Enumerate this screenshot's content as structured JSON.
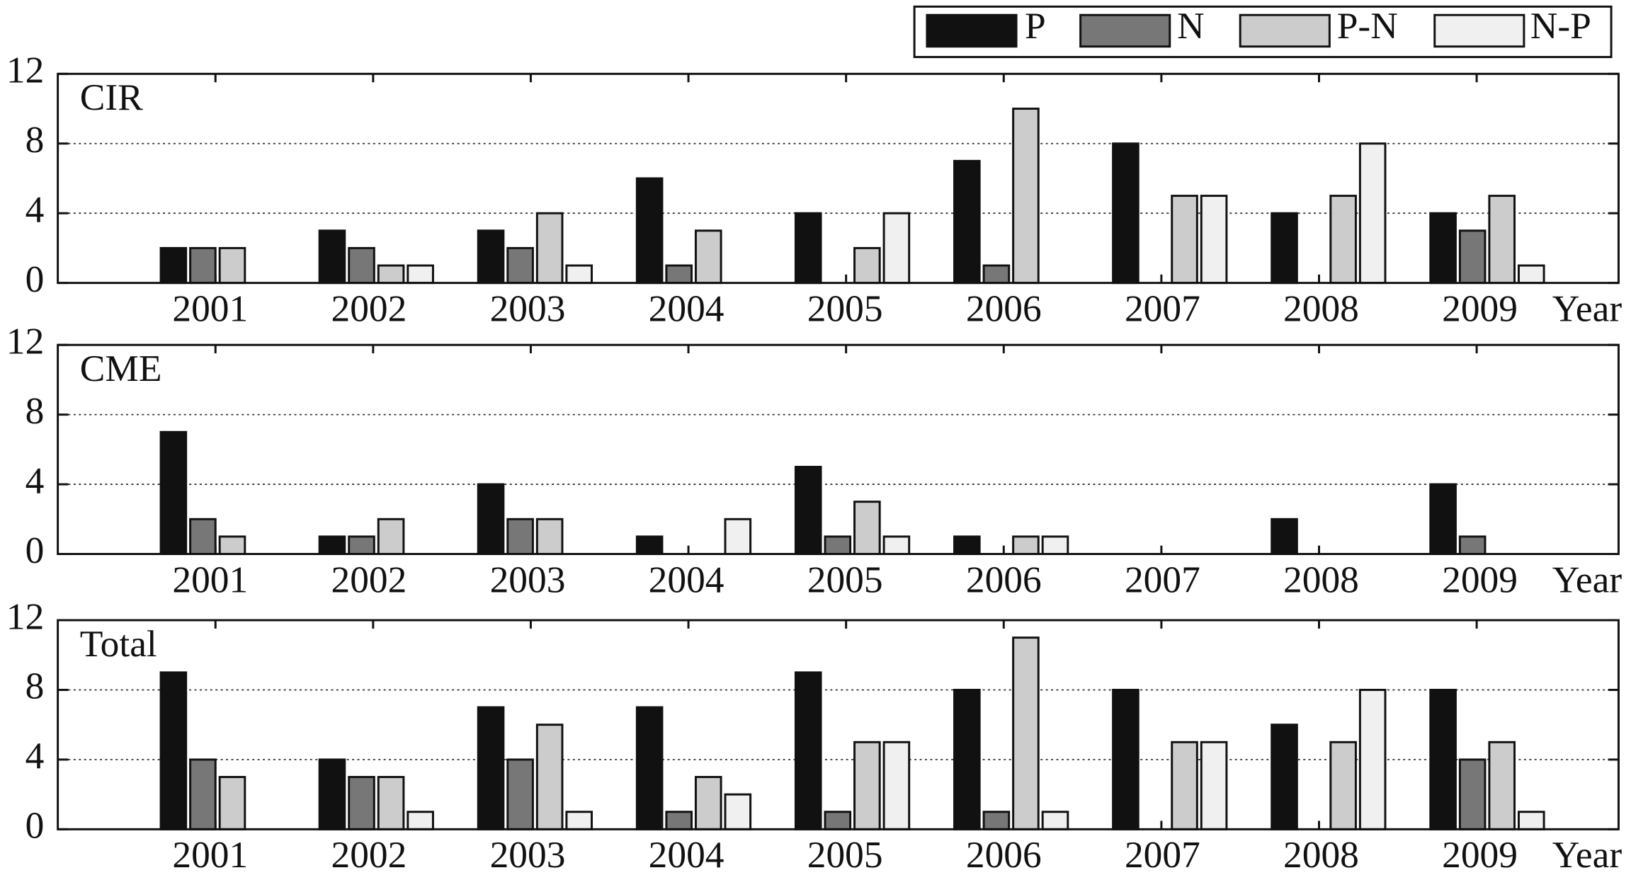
{
  "chart_data": [
    {
      "type": "bar",
      "title": "CIR",
      "x_label": "Year",
      "categories": [
        "2001",
        "2002",
        "2003",
        "2004",
        "2005",
        "2006",
        "2007",
        "2008",
        "2009"
      ],
      "series": [
        {
          "name": "P",
          "color": "#111111",
          "values": [
            2,
            3,
            3,
            6,
            4,
            7,
            8,
            4,
            4
          ]
        },
        {
          "name": "N",
          "color": "#777777",
          "values": [
            2,
            2,
            2,
            1,
            0,
            1,
            0,
            0,
            3
          ]
        },
        {
          "name": "P-N",
          "color": "#cccccc",
          "values": [
            2,
            1,
            4,
            3,
            2,
            10,
            5,
            5,
            5
          ]
        },
        {
          "name": "N-P",
          "color": "#f0f0f0",
          "values": [
            0,
            1,
            1,
            0,
            4,
            0,
            5,
            8,
            1
          ]
        }
      ],
      "ylim": [
        0,
        12
      ],
      "yticks": [
        0,
        4,
        8,
        12
      ],
      "grid": true
    },
    {
      "type": "bar",
      "title": "CME",
      "x_label": "Year",
      "categories": [
        "2001",
        "2002",
        "2003",
        "2004",
        "2005",
        "2006",
        "2007",
        "2008",
        "2009"
      ],
      "series": [
        {
          "name": "P",
          "color": "#111111",
          "values": [
            7,
            1,
            4,
            1,
            5,
            1,
            0,
            2,
            4
          ]
        },
        {
          "name": "N",
          "color": "#777777",
          "values": [
            2,
            1,
            2,
            0,
            1,
            0,
            0,
            0,
            1
          ]
        },
        {
          "name": "P-N",
          "color": "#cccccc",
          "values": [
            1,
            2,
            2,
            0,
            3,
            1,
            0,
            0,
            0
          ]
        },
        {
          "name": "N-P",
          "color": "#f0f0f0",
          "values": [
            0,
            0,
            0,
            2,
            1,
            1,
            0,
            0,
            0
          ]
        }
      ],
      "ylim": [
        0,
        12
      ],
      "yticks": [
        0,
        4,
        8,
        12
      ],
      "grid": true
    },
    {
      "type": "bar",
      "title": "Total",
      "x_label": "Year",
      "categories": [
        "2001",
        "2002",
        "2003",
        "2004",
        "2005",
        "2006",
        "2007",
        "2008",
        "2009"
      ],
      "series": [
        {
          "name": "P",
          "color": "#111111",
          "values": [
            9,
            4,
            7,
            7,
            9,
            8,
            8,
            6,
            8
          ]
        },
        {
          "name": "N",
          "color": "#777777",
          "values": [
            4,
            3,
            4,
            1,
            1,
            1,
            0,
            0,
            4
          ]
        },
        {
          "name": "P-N",
          "color": "#cccccc",
          "values": [
            3,
            3,
            6,
            3,
            5,
            11,
            5,
            5,
            5
          ]
        },
        {
          "name": "N-P",
          "color": "#f0f0f0",
          "values": [
            0,
            1,
            1,
            2,
            5,
            1,
            5,
            8,
            1
          ]
        }
      ],
      "ylim": [
        0,
        12
      ],
      "yticks": [
        0,
        4,
        8,
        12
      ],
      "grid": true
    }
  ]
}
